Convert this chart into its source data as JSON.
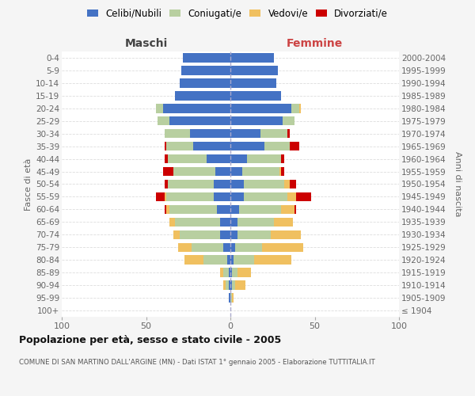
{
  "age_groups": [
    "100+",
    "95-99",
    "90-94",
    "85-89",
    "80-84",
    "75-79",
    "70-74",
    "65-69",
    "60-64",
    "55-59",
    "50-54",
    "45-49",
    "40-44",
    "35-39",
    "30-34",
    "25-29",
    "20-24",
    "15-19",
    "10-14",
    "5-9",
    "0-4"
  ],
  "birth_years": [
    "≤ 1904",
    "1905-1909",
    "1910-1914",
    "1915-1919",
    "1920-1924",
    "1925-1929",
    "1930-1934",
    "1935-1939",
    "1940-1944",
    "1945-1949",
    "1950-1954",
    "1955-1959",
    "1960-1964",
    "1965-1969",
    "1970-1974",
    "1975-1979",
    "1980-1984",
    "1985-1989",
    "1990-1994",
    "1995-1999",
    "2000-2004"
  ],
  "maschi_celibi": [
    0,
    1,
    1,
    1,
    2,
    4,
    6,
    6,
    8,
    10,
    10,
    9,
    14,
    22,
    24,
    36,
    40,
    33,
    30,
    29,
    28
  ],
  "maschi_coniugati": [
    0,
    0,
    2,
    3,
    14,
    19,
    24,
    27,
    28,
    28,
    27,
    25,
    23,
    16,
    15,
    7,
    4,
    0,
    0,
    0,
    0
  ],
  "maschi_vedovi": [
    0,
    0,
    1,
    2,
    11,
    8,
    4,
    3,
    2,
    1,
    0,
    0,
    0,
    0,
    0,
    0,
    0,
    0,
    0,
    0,
    0
  ],
  "maschi_divorziati": [
    0,
    0,
    0,
    0,
    0,
    0,
    0,
    0,
    1,
    5,
    2,
    6,
    2,
    1,
    0,
    0,
    0,
    0,
    0,
    0,
    0
  ],
  "femmine_nubili": [
    0,
    0,
    1,
    1,
    2,
    3,
    4,
    4,
    5,
    8,
    8,
    7,
    10,
    20,
    18,
    31,
    36,
    30,
    27,
    28,
    26
  ],
  "femmine_coniugate": [
    0,
    1,
    2,
    3,
    12,
    16,
    20,
    22,
    25,
    26,
    24,
    22,
    20,
    15,
    16,
    7,
    5,
    0,
    0,
    0,
    0
  ],
  "femmine_vedove": [
    0,
    1,
    6,
    8,
    22,
    24,
    18,
    11,
    8,
    5,
    3,
    1,
    0,
    0,
    0,
    0,
    1,
    0,
    0,
    0,
    0
  ],
  "femmine_divorziate": [
    0,
    0,
    0,
    0,
    0,
    0,
    0,
    0,
    1,
    9,
    4,
    2,
    2,
    6,
    1,
    0,
    0,
    0,
    0,
    0,
    0
  ],
  "color_celibi": "#4472c4",
  "color_coniugati": "#b8cfa0",
  "color_vedovi": "#f0c060",
  "color_divorziati": "#cc0000",
  "title": "Popolazione per età, sesso e stato civile - 2005",
  "subtitle": "COMUNE DI SAN MARTINO DALL'ARGINE (MN) - Dati ISTAT 1° gennaio 2005 - Elaborazione TUTTITALIA.IT",
  "label_maschi": "Maschi",
  "label_femmine": "Femmine",
  "ylabel_left": "Fasce di età",
  "ylabel_right": "Anni di nascita",
  "legend_labels": [
    "Celibi/Nubili",
    "Coniugati/e",
    "Vedovi/e",
    "Divorziati/e"
  ],
  "xlim": 100,
  "bg_color": "#f5f5f5",
  "plot_bg": "#ffffff"
}
